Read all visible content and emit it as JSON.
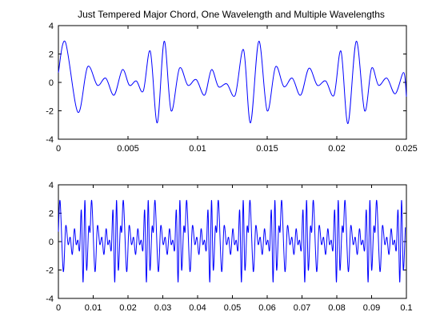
{
  "figure": {
    "title": "Just Tempered Major Chord, One Wavelength and Multiple Wavelengths"
  },
  "chart_data": [
    {
      "type": "line",
      "title": "Just Tempered Major Chord, One Wavelength and Multiple Wavelengths",
      "xlabel": "",
      "ylabel": "",
      "xlim": [
        0,
        0.025
      ],
      "ylim": [
        -4,
        4
      ],
      "xticks": [
        0,
        0.005,
        0.01,
        0.015,
        0.02,
        0.025
      ],
      "xtick_labels": [
        "0",
        "0.005",
        "0.01",
        "0.015",
        "0.02",
        "0.025"
      ],
      "yticks": [
        -4,
        -2,
        0,
        2,
        4
      ],
      "ytick_labels": [
        "-4",
        "-2",
        "0",
        "2",
        "4"
      ],
      "grid": false,
      "color": "#0000ff",
      "series": [
        {
          "x": [
            0,
            0.0005,
            0.0014,
            0.0021,
            0.0028,
            0.0034,
            0.004,
            0.0046,
            0.0051,
            0.0056,
            0.0061,
            0.0066,
            0.0071,
            0.0076,
            0.0081,
            0.0087,
            0.0093,
            0.0099,
            0.0105,
            0.011,
            0.0115,
            0.0121,
            0.0127,
            0.0133,
            0.0138,
            0.0144,
            0.015,
            0.0156,
            0.0162,
            0.0168,
            0.0174,
            0.018,
            0.0186,
            0.0192,
            0.0198,
            0.0203,
            0.0208,
            0.0214,
            0.022,
            0.0225,
            0.023,
            0.0236,
            0.0242,
            0.0248,
            0.025
          ],
          "y": [
            0.7,
            2.85,
            -2.1,
            1.1,
            -0.2,
            0.3,
            -0.9,
            0.9,
            -0.2,
            0.1,
            -0.6,
            2.2,
            -2.85,
            2.9,
            -2.0,
            1.0,
            -0.2,
            0.2,
            -0.9,
            0.9,
            -0.3,
            -0.1,
            -0.9,
            2.3,
            -2.85,
            2.9,
            -2.0,
            1.1,
            -0.3,
            0.3,
            -0.9,
            1.0,
            -0.2,
            0.1,
            -0.9,
            2.2,
            -2.9,
            2.9,
            -2.0,
            1.0,
            -0.2,
            0.3,
            -0.8,
            0.7,
            -1.0
          ]
        }
      ]
    },
    {
      "type": "line",
      "title": "",
      "xlabel": "",
      "ylabel": "",
      "xlim": [
        0,
        0.1
      ],
      "ylim": [
        -4,
        4
      ],
      "xticks": [
        0,
        0.01,
        0.02,
        0.03,
        0.04,
        0.05,
        0.06,
        0.07,
        0.08,
        0.09,
        0.1
      ],
      "xtick_labels": [
        "0",
        "0.01",
        "0.02",
        "0.03",
        "0.04",
        "0.05",
        "0.06",
        "0.07",
        "0.08",
        "0.09",
        "0.1"
      ],
      "yticks": [
        -4,
        -2,
        0,
        2,
        4
      ],
      "ytick_labels": [
        "-4",
        "-2",
        "0",
        "2",
        "4"
      ],
      "grid": false,
      "color": "#0000ff",
      "series": [
        {
          "periodic": true,
          "period": 0.0091,
          "x": [
            0,
            0.0005,
            0.0014,
            0.0021,
            0.0028,
            0.0034,
            0.004,
            0.0046,
            0.0051,
            0.0056,
            0.0061,
            0.0066,
            0.0071,
            0.0076,
            0.0081,
            0.0087
          ],
          "y": [
            0.7,
            2.85,
            -2.1,
            1.1,
            -0.2,
            0.3,
            -0.9,
            0.9,
            -0.2,
            0.1,
            -0.6,
            2.2,
            -2.85,
            2.9,
            -2.0,
            1.0
          ]
        }
      ]
    }
  ]
}
